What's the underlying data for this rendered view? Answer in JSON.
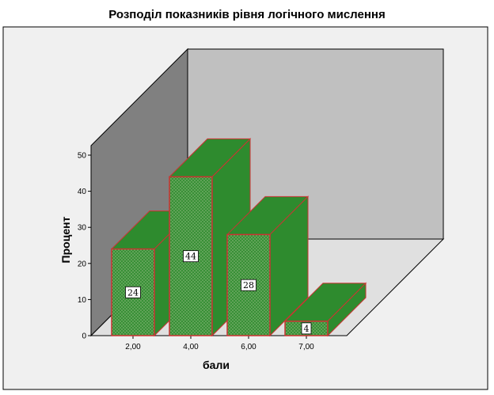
{
  "chart_data": {
    "type": "bar",
    "title": "Розподіл показників рівня логічного мислення",
    "xlabel": "бали",
    "ylabel": "Процент",
    "categories": [
      "2,00",
      "4,00",
      "6,00",
      "7,00"
    ],
    "values": [
      24,
      44,
      28,
      4
    ],
    "data_labels": [
      "24",
      "44",
      "28",
      "4"
    ],
    "yticks": [
      "0",
      "10",
      "20",
      "30",
      "40",
      "50"
    ],
    "ylim": [
      0,
      50
    ],
    "grid": false,
    "legend": "none",
    "style": "3d",
    "colors": {
      "bar_fill": "#2e8b2e",
      "bar_front": "#6aa860",
      "bar_edge": "#cc3333",
      "back_wall": "#c0c0c0",
      "side_wall": "#808080",
      "floor": "#e0e0e0",
      "chart_bg": "#f0f0f0"
    }
  }
}
